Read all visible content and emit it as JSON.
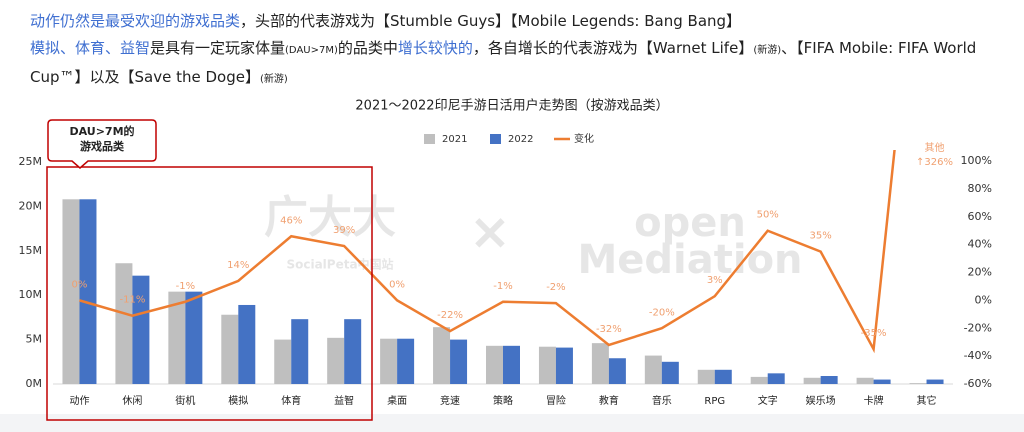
{
  "header": {
    "segments": [
      {
        "text": "动作仍然是最受欢迎的游戏品类",
        "style": "b"
      },
      {
        "text": "，头部的代表游戏为【Stumble Guys】【Mobile Legends: Bang Bang】",
        "style": "n"
      },
      {
        "text": "模拟、体育、益智",
        "style": "b",
        "break": true
      },
      {
        "text": "是具有一定玩家体量",
        "style": "n"
      },
      {
        "text": "(DAU>7M)",
        "style": "s"
      },
      {
        "text": "的品类中",
        "style": "n"
      },
      {
        "text": "增长较快的",
        "style": "b"
      },
      {
        "text": "，各自增长的代表游戏为【Warnet Life】",
        "style": "n"
      },
      {
        "text": "(新游)",
        "style": "s"
      },
      {
        "text": "、【FIFA Mobile: FIFA World Cup™】以及【Save the Doge】",
        "style": "n"
      },
      {
        "text": "(新游)",
        "style": "s"
      }
    ]
  },
  "chart_data": {
    "type": "bar",
    "title": "2021～2022印尼手游日活用户走势图（按游戏品类）",
    "categories": [
      "动作",
      "休闲",
      "街机",
      "模拟",
      "体育",
      "益智",
      "桌面",
      "竞速",
      "策略",
      "冒险",
      "教育",
      "音乐",
      "RPG",
      "文字",
      "娱乐场",
      "卡牌",
      "其它"
    ],
    "series": [
      {
        "name": "2021",
        "color": "#bfbfbf",
        "values": [
          20.8,
          13.6,
          10.4,
          7.8,
          5.0,
          5.2,
          5.1,
          6.4,
          4.3,
          4.2,
          4.6,
          3.2,
          1.6,
          0.8,
          0.7,
          0.7,
          0.1
        ]
      },
      {
        "name": "2022",
        "color": "#4472c4",
        "values": [
          20.8,
          12.2,
          10.4,
          8.9,
          7.3,
          7.3,
          5.1,
          5.0,
          4.3,
          4.1,
          2.9,
          2.5,
          1.6,
          1.2,
          0.9,
          0.5,
          0.5
        ]
      },
      {
        "name": "变化",
        "color": "#ed7d31",
        "type": "line",
        "axis": "y2",
        "values": [
          0,
          -11,
          -1,
          14,
          46,
          39,
          0,
          -22,
          -1,
          -2,
          -32,
          -20,
          3,
          50,
          35,
          -35,
          326
        ],
        "value_labels": [
          "0%",
          "-11%",
          "-1%",
          "14%",
          "46%",
          "39%",
          "0%",
          "-22%",
          "-1%",
          "-2%",
          "-32%",
          "-20%",
          "3%",
          "50%",
          "35%",
          "-35%",
          "↑326%"
        ]
      }
    ],
    "ylim": [
      0,
      25
    ],
    "yticks": [
      {
        "value": 0,
        "label": "0M"
      },
      {
        "value": 5,
        "label": "5M"
      },
      {
        "value": 10,
        "label": "10M"
      },
      {
        "value": 15,
        "label": "15M"
      },
      {
        "value": 20,
        "label": "20M"
      },
      {
        "value": 25,
        "label": "25M"
      }
    ],
    "y2lim": [
      -60,
      100
    ],
    "y2ticks": [
      {
        "value": -60,
        "label": "-60%"
      },
      {
        "value": -40,
        "label": "-40%"
      },
      {
        "value": -20,
        "label": "-20%"
      },
      {
        "value": 0,
        "label": "0%"
      },
      {
        "value": 20,
        "label": "20%"
      },
      {
        "value": 40,
        "label": "40%"
      },
      {
        "value": 60,
        "label": "60%"
      },
      {
        "value": 80,
        "label": "80%"
      },
      {
        "value": 100,
        "label": "100%"
      }
    ],
    "legend": "top",
    "callout": [
      "DAU>7M的",
      "游戏品类"
    ],
    "line_annotation": "其他",
    "watermark": [
      "广大大",
      "SocialPeta中国站",
      "×",
      "open",
      "Mediation"
    ]
  }
}
